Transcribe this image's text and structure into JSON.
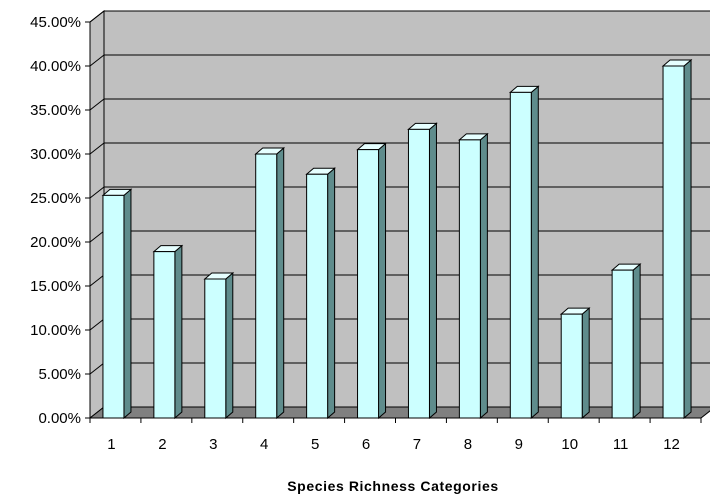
{
  "chart_data": {
    "type": "bar",
    "categories": [
      "1",
      "2",
      "3",
      "4",
      "5",
      "6",
      "7",
      "8",
      "9",
      "10",
      "11",
      "12"
    ],
    "values": [
      25.3,
      18.9,
      15.8,
      30.0,
      27.7,
      30.5,
      32.8,
      31.6,
      37.0,
      11.8,
      16.8,
      40.0
    ],
    "y_tick_labels": [
      "0.00%",
      "5.00%",
      "10.00%",
      "15.00%",
      "20.00%",
      "25.00%",
      "30.00%",
      "35.00%",
      "40.00%",
      "45.00%"
    ],
    "title": "",
    "xlabel": "Species Richness Categories",
    "ylabel": "",
    "ylim": [
      0,
      45
    ],
    "grid": true,
    "legend": "none",
    "colors": {
      "bar_front": "#ccffff",
      "bar_side": "#5f8c8c",
      "bar_top": "#e6ffff",
      "wall": "#c0c0c0",
      "floor": "#808080",
      "axis": "#000000"
    }
  }
}
